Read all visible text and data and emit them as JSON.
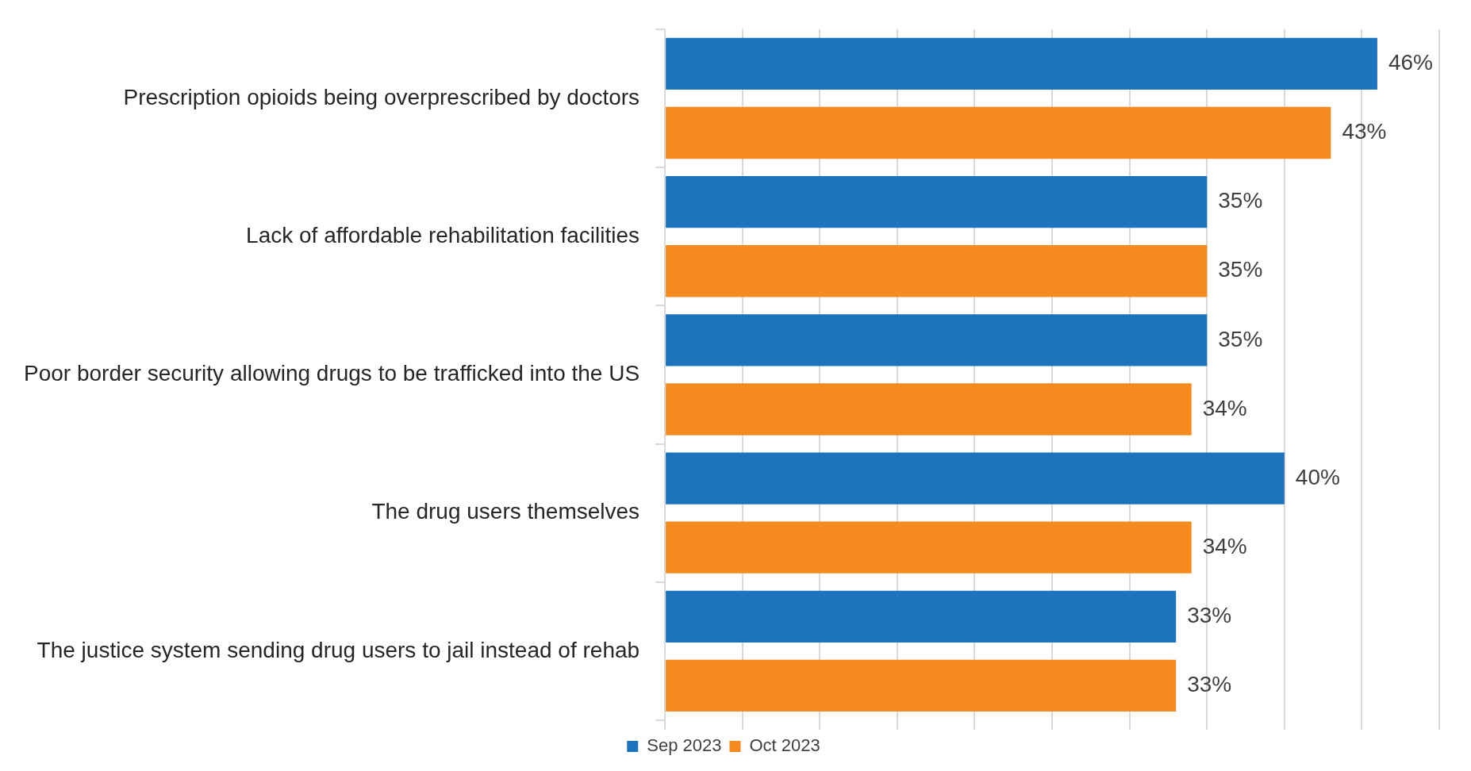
{
  "chart_data": {
    "type": "bar",
    "orientation": "horizontal",
    "categories": [
      "Prescription opioids being overprescribed by doctors",
      "Lack of affordable rehabilitation facilities",
      "Poor border security allowing drugs to be trafficked into the US",
      "The drug users themselves",
      "The justice system sending drug users to jail instead of rehab"
    ],
    "series": [
      {
        "name": "Sep 2023",
        "color": "#1c75bc",
        "values": [
          46,
          35,
          35,
          40,
          33
        ],
        "value_labels": [
          "46%",
          "35%",
          "35%",
          "40%",
          "33%"
        ]
      },
      {
        "name": "Oct 2023",
        "color": "#f58b1f",
        "values": [
          43,
          35,
          34,
          34,
          33
        ],
        "value_labels": [
          "43%",
          "35%",
          "34%",
          "34%",
          "33%"
        ]
      }
    ],
    "xlim": [
      0,
      50
    ],
    "xticks": [
      {
        "value": 0,
        "label": null
      },
      {
        "value": 5,
        "label": null
      },
      {
        "value": 10,
        "label": null
      },
      {
        "value": 15,
        "label": null
      },
      {
        "value": 20,
        "label": null
      },
      {
        "value": 25,
        "label": null
      },
      {
        "value": 30,
        "label": null
      },
      {
        "value": 35,
        "label": null
      },
      {
        "value": 40,
        "label": null
      },
      {
        "value": 45,
        "label": null
      },
      {
        "value": 50,
        "label": null
      }
    ],
    "tick_labels": "y",
    "grid": "x",
    "legend": "bottom"
  }
}
